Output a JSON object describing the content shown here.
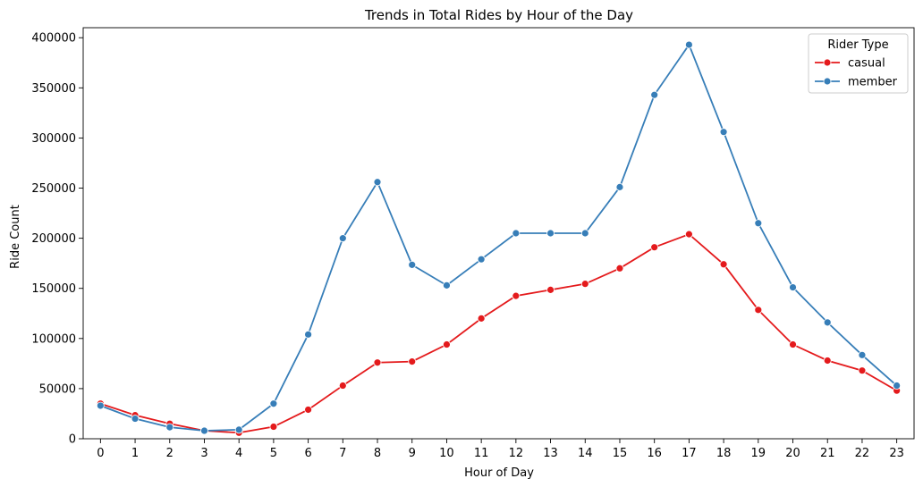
{
  "chart_data": {
    "type": "line",
    "title": "Trends in Total Rides by Hour of the Day",
    "xlabel": "Hour of Day",
    "ylabel": "Ride Count",
    "x": [
      0,
      1,
      2,
      3,
      4,
      5,
      6,
      7,
      8,
      9,
      10,
      11,
      12,
      13,
      14,
      15,
      16,
      17,
      18,
      19,
      20,
      21,
      22,
      23
    ],
    "xlim": [
      -0.5,
      23.5
    ],
    "ylim": [
      0,
      410000
    ],
    "yticks": [
      0,
      50000,
      100000,
      150000,
      200000,
      250000,
      300000,
      350000,
      400000
    ],
    "grid": false,
    "legend": {
      "title": "Rider Type",
      "placement": "top-right"
    },
    "series": [
      {
        "name": "casual",
        "color": "#e41a1c",
        "values": [
          35000,
          23500,
          15000,
          8000,
          6000,
          12000,
          29000,
          53000,
          76000,
          77000,
          94000,
          120000,
          142500,
          148500,
          154500,
          170000,
          191000,
          204000,
          174000,
          128500,
          94000,
          78000,
          68000,
          48000
        ]
      },
      {
        "name": "member",
        "color": "#377eb8",
        "values": [
          33000,
          20000,
          11500,
          8000,
          9000,
          35000,
          104000,
          200000,
          256000,
          173500,
          153000,
          179000,
          205000,
          205000,
          205000,
          251000,
          343000,
          393000,
          306000,
          215000,
          151000,
          116000,
          83500,
          53000
        ]
      }
    ]
  }
}
